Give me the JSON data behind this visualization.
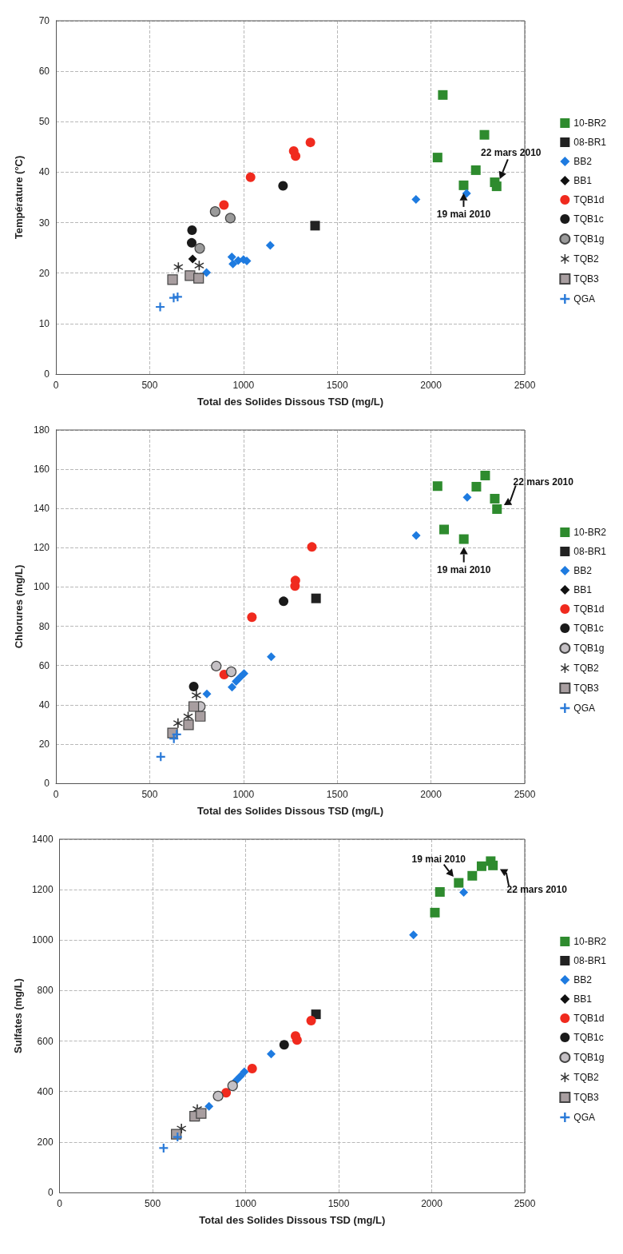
{
  "chart_data": [
    {
      "type": "scatter",
      "xlabel": "Total des Solides Dissous TSD (mg/L)",
      "ylabel": "Température (°C)",
      "xlim": [
        0,
        2500
      ],
      "xticks": [
        0,
        500,
        1000,
        1500,
        2000,
        2500
      ],
      "ylim": [
        0,
        70
      ],
      "yticks": [
        0,
        10,
        20,
        30,
        40,
        50,
        60,
        70
      ],
      "grid": true,
      "legend": "right",
      "series": [
        {
          "name": "10-BR2",
          "color": "#2e8b2e",
          "marker": "square",
          "x": [
            2063,
            2285,
            2035,
            2239,
            2174,
            2340,
            2350
          ],
          "values": [
            55.3,
            47.4,
            42.9,
            40.4,
            37.4,
            38.0,
            37.2
          ]
        },
        {
          "name": "08-BR1",
          "color": "#222222",
          "marker": "square",
          "x": [
            1382
          ],
          "values": [
            29.4
          ]
        },
        {
          "name": "BB2",
          "color": "#1e7be0",
          "marker": "diamond",
          "x": [
            1143,
            938,
            944,
            972,
            1000,
            1018,
            803,
            1920,
            2190
          ],
          "values": [
            25.5,
            23.2,
            21.8,
            22.5,
            22.7,
            22.4,
            20.1,
            34.6,
            35.8
          ]
        },
        {
          "name": "BB1",
          "color": "#111111",
          "marker": "diamond",
          "x": [
            729
          ],
          "values": [
            22.8
          ]
        },
        {
          "name": "TQB1d",
          "color": "#f02a1e",
          "marker": "circle",
          "x": [
            1357,
            1268,
            1278,
            1038,
            896
          ],
          "values": [
            45.9,
            44.2,
            43.2,
            39.0,
            33.5
          ]
        },
        {
          "name": "TQB1c",
          "color": "#1a1a1a",
          "marker": "circle",
          "x": [
            1211,
            726,
            724
          ],
          "values": [
            37.3,
            28.5,
            26.0
          ]
        },
        {
          "name": "TQB1g",
          "color": "#9a9a9a",
          "marker": "circle",
          "x": [
            849,
            930,
            767
          ],
          "values": [
            32.2,
            30.9,
            24.9
          ]
        },
        {
          "name": "TQB2",
          "color": "#333333",
          "marker": "star",
          "x": [
            653,
            764
          ],
          "values": [
            21.2,
            21.5
          ]
        },
        {
          "name": "TQB3",
          "color": "#a89ea0",
          "marker": "square",
          "x": [
            622,
            715,
            761
          ],
          "values": [
            18.7,
            19.5,
            19.0
          ]
        },
        {
          "name": "QGA",
          "color": "#2a7ad8",
          "marker": "cross",
          "x": [
            556,
            628,
            649
          ],
          "values": [
            13.3,
            15.1,
            15.3
          ]
        }
      ],
      "annotations": [
        {
          "text": "19 mai 2010",
          "x": 2174,
          "y": 37.4
        },
        {
          "text": "22 mars 2010",
          "x": 2350,
          "y": 37.2
        }
      ]
    },
    {
      "type": "scatter",
      "xlabel": "Total des Solides Dissous TSD (mg/L)",
      "ylabel": "Chlorures (mg/L)",
      "xlim": [
        0,
        2500
      ],
      "xticks": [
        0,
        500,
        1000,
        1500,
        2000,
        2500
      ],
      "ylim": [
        0,
        180
      ],
      "yticks": [
        0,
        20,
        40,
        60,
        80,
        100,
        120,
        140,
        160,
        180
      ],
      "grid": true,
      "legend": "right",
      "series": [
        {
          "name": "10-BR2",
          "color": "#2e8b2e",
          "marker": "square",
          "x": [
            2035,
            2242,
            2289,
            2340,
            2352,
            2070,
            2175
          ],
          "values": [
            151.4,
            151.1,
            156.8,
            145,
            139.7,
            129.3,
            124.4
          ]
        },
        {
          "name": "08-BR1",
          "color": "#222222",
          "marker": "square",
          "x": [
            1387
          ],
          "values": [
            94.2
          ]
        },
        {
          "name": "BB2",
          "color": "#1e7be0",
          "marker": "diamond",
          "x": [
            1148,
            939,
            961,
            1003,
            982,
            805,
            1921,
            2193
          ],
          "values": [
            64.4,
            49,
            51.9,
            55.9,
            54.0,
            45.5,
            126.2,
            145.7
          ]
        },
        {
          "name": "BB1",
          "color": "#111111",
          "marker": "diamond"
        },
        {
          "name": "TQB1d",
          "color": "#f02a1e",
          "marker": "circle",
          "x": [
            1365,
            1277,
            1275,
            1045,
            897
          ],
          "values": [
            120.4,
            103.3,
            100.5,
            84.6,
            55.4
          ]
        },
        {
          "name": "TQB1c",
          "color": "#1a1a1a",
          "marker": "circle",
          "x": [
            1214,
            735
          ],
          "values": [
            92.7,
            49.3
          ]
        },
        {
          "name": "TQB1g",
          "color": "#c4c0c4",
          "marker": "circle",
          "x": [
            855,
            935,
            770
          ],
          "values": [
            59.7,
            56.8,
            39.1
          ]
        },
        {
          "name": "TQB2",
          "color": "#333333",
          "marker": "star",
          "x": [
            749,
            651,
            705
          ],
          "values": [
            44.8,
            30.6,
            34
          ]
        },
        {
          "name": "TQB3",
          "color": "#a89ea0",
          "marker": "square",
          "x": [
            735,
            770,
            707,
            622
          ],
          "values": [
            39.1,
            34.1,
            29.8,
            25.6
          ]
        },
        {
          "name": "QGA",
          "color": "#2a7ad8",
          "marker": "cross",
          "x": [
            559,
            629,
            644
          ],
          "values": [
            13.5,
            22.7,
            24.9
          ]
        }
      ],
      "annotations": [
        {
          "text": "22 mars 2010",
          "x": 2352,
          "y": 139.7
        },
        {
          "text": "19 mai 2010",
          "x": 2175,
          "y": 124.4
        }
      ]
    },
    {
      "type": "scatter",
      "xlabel": "Total des Solides Dissous TSD (mg/L)",
      "ylabel": "Sulfates (mg/L)",
      "xlim": [
        0,
        2500
      ],
      "xticks": [
        0,
        500,
        1000,
        1500,
        2000,
        2500
      ],
      "ylim": [
        0,
        1400
      ],
      "yticks": [
        0,
        200,
        400,
        600,
        800,
        1000,
        1200,
        1400
      ],
      "grid": true,
      "legend": "right",
      "series": [
        {
          "name": "10-BR2",
          "color": "#2e8b2e",
          "marker": "square",
          "x": [
            2017,
            2044,
            2145,
            2218,
            2268,
            2317,
            2329
          ],
          "values": [
            1109,
            1191,
            1227,
            1255,
            1293,
            1313,
            1296
          ]
        },
        {
          "name": "08-BR1",
          "color": "#222222",
          "marker": "square",
          "x": [
            1378
          ],
          "values": [
            706
          ]
        },
        {
          "name": "BB2",
          "color": "#1e7be0",
          "marker": "diamond",
          "x": [
            1137,
            993,
            972,
            951,
            937,
            803,
            1902,
            2172
          ],
          "values": [
            549,
            478,
            461,
            445,
            null,
            341,
            1021,
            1189
          ]
        },
        {
          "name": "BB1",
          "color": "#111111",
          "marker": "diamond"
        },
        {
          "name": "TQB1d",
          "color": "#f02a1e",
          "marker": "circle",
          "x": [
            1352,
            1268,
            1276,
            1035,
            895
          ],
          "values": [
            681,
            620,
            604,
            491,
            395
          ]
        },
        {
          "name": "TQB1c",
          "color": "#1a1a1a",
          "marker": "circle",
          "x": [
            1207
          ],
          "values": [
            585
          ]
        },
        {
          "name": "TQB1g",
          "color": "#c4c0c4",
          "marker": "circle",
          "x": [
            930,
            852
          ],
          "values": [
            423,
            382
          ]
        },
        {
          "name": "TQB2",
          "color": "#333333",
          "marker": "star",
          "x": [
            740,
            655
          ],
          "values": [
            330,
            253
          ]
        },
        {
          "name": "TQB3",
          "color": "#a89ea0",
          "marker": "square",
          "x": [
            726,
            761,
            627
          ],
          "values": [
            302,
            313,
            231
          ]
        },
        {
          "name": "QGA",
          "color": "#2a7ad8",
          "marker": "cross",
          "x": [
            559,
            634
          ],
          "values": [
            176,
            220
          ]
        }
      ],
      "annotations": [
        {
          "text": "19 mai 2010",
          "x": 2145,
          "y": 1227
        },
        {
          "text": "22 mars 2010",
          "x": 2329,
          "y": 1296
        }
      ]
    }
  ]
}
